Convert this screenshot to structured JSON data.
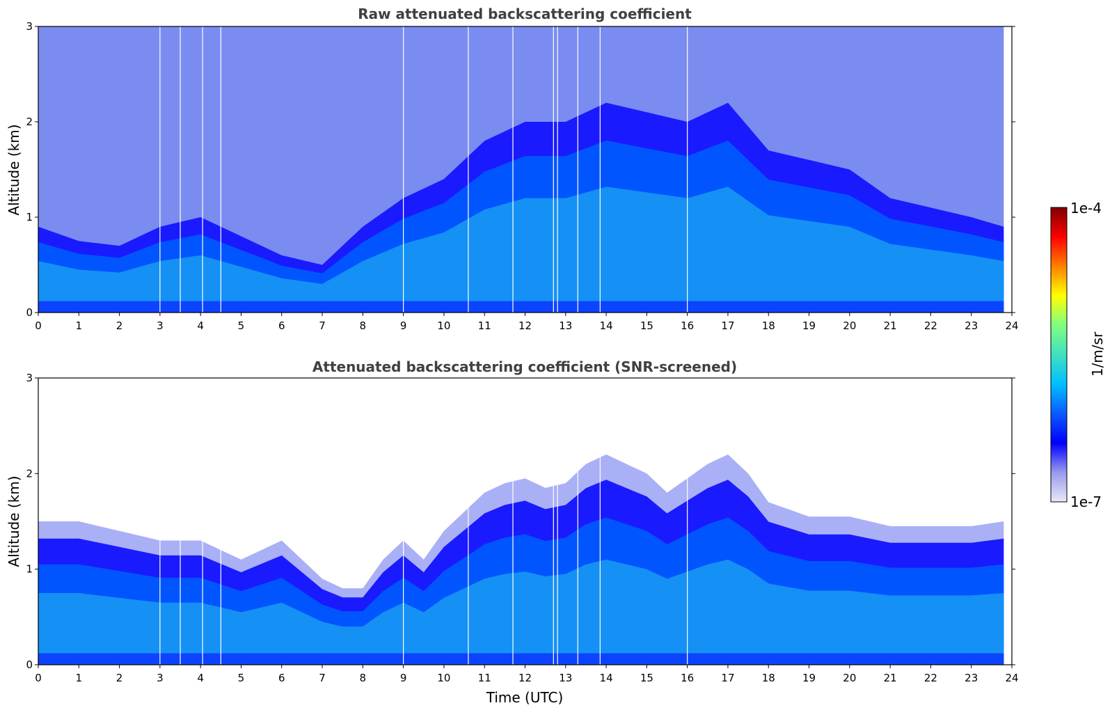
{
  "chart_data": [
    {
      "type": "heatmap",
      "title": "Raw attenuated backscattering coefficient",
      "xlabel": "",
      "ylabel": "Altitude (km)",
      "xlim": [
        0,
        24
      ],
      "ylim": [
        0,
        3
      ],
      "xticks": [
        "0",
        "1",
        "2",
        "3",
        "4",
        "5",
        "6",
        "7",
        "8",
        "9",
        "10",
        "11",
        "12",
        "13",
        "14",
        "15",
        "16",
        "17",
        "18",
        "19",
        "20",
        "21",
        "22",
        "23",
        "24"
      ],
      "yticks": [
        "0",
        "1",
        "2",
        "3"
      ],
      "data_x_extent": [
        0,
        23.8
      ],
      "boundary_layer_top_km": {
        "x": [
          0,
          1,
          2,
          3,
          4,
          5,
          6,
          7,
          8,
          9,
          10,
          11,
          12,
          13,
          14,
          15,
          16,
          17,
          18,
          19,
          20,
          21,
          22,
          23,
          23.8
        ],
        "y": [
          0.9,
          0.75,
          0.7,
          0.9,
          1.0,
          0.8,
          0.6,
          0.5,
          0.9,
          1.2,
          1.4,
          1.8,
          2.0,
          2.0,
          2.2,
          2.1,
          2.0,
          2.2,
          1.7,
          1.6,
          1.5,
          1.2,
          1.1,
          1.0,
          0.9
        ]
      },
      "gap_times_utc": [
        3.0,
        3.5,
        4.05,
        4.5,
        9.0,
        10.6,
        11.7,
        12.7,
        12.8,
        13.3,
        13.85,
        16.0
      ]
    },
    {
      "type": "heatmap",
      "title": "Attenuated backscattering coefficient (SNR-screened)",
      "xlabel": "Time (UTC)",
      "ylabel": "Altitude (km)",
      "xlim": [
        0,
        24
      ],
      "ylim": [
        0,
        3
      ],
      "xticks": [
        "0",
        "1",
        "2",
        "3",
        "4",
        "5",
        "6",
        "7",
        "8",
        "9",
        "10",
        "11",
        "12",
        "13",
        "14",
        "15",
        "16",
        "17",
        "18",
        "19",
        "20",
        "21",
        "22",
        "23",
        "24"
      ],
      "yticks": [
        "0",
        "1",
        "2",
        "3"
      ],
      "data_x_extent": [
        0,
        23.8
      ],
      "boundary_layer_top_km": {
        "x": [
          0,
          0.5,
          1,
          2,
          3,
          3.5,
          4,
          4.5,
          5,
          6,
          7,
          7.5,
          8,
          8.5,
          9,
          9.5,
          10,
          10.5,
          11,
          11.5,
          12,
          12.5,
          13,
          13.5,
          14,
          14.5,
          15,
          15.5,
          16,
          16.5,
          17,
          17.5,
          18,
          19,
          20,
          20.5,
          21,
          22,
          23,
          23.8
        ],
        "y": [
          1.5,
          1.5,
          1.5,
          1.4,
          1.3,
          1.3,
          1.3,
          1.2,
          1.1,
          1.3,
          0.9,
          0.8,
          0.8,
          1.1,
          1.3,
          1.1,
          1.4,
          1.6,
          1.8,
          1.9,
          1.95,
          1.85,
          1.9,
          2.1,
          2.2,
          2.1,
          2.0,
          1.8,
          1.95,
          2.1,
          2.2,
          2.0,
          1.7,
          1.55,
          1.55,
          1.5,
          1.45,
          1.45,
          1.45,
          1.5
        ]
      },
      "gap_times_utc": [
        3.0,
        3.5,
        4.05,
        4.5,
        9.0,
        10.6,
        11.7,
        12.7,
        12.8,
        13.3,
        13.85,
        16.0
      ]
    }
  ],
  "colorbar": {
    "label": "1/m/sr",
    "min_label": "1e-7",
    "max_label": "1e-4",
    "scale": "log",
    "range": [
      1e-07,
      0.0001
    ],
    "colors": [
      "#e8e8f8",
      "#9999ee",
      "#0000ff",
      "#0a5bff",
      "#00bfff",
      "#40e0c0",
      "#80ff80",
      "#ffff00",
      "#ff8000",
      "#ff0000",
      "#800000"
    ]
  }
}
